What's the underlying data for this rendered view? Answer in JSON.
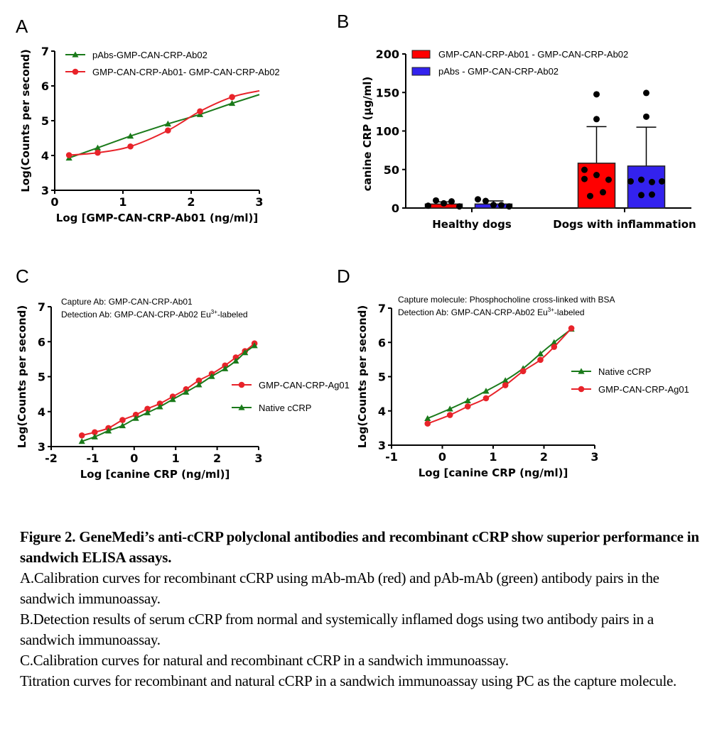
{
  "panels": {
    "A": "A",
    "B": "B",
    "C": "C",
    "D": "D"
  },
  "chart_data": [
    {
      "id": "A",
      "type": "line",
      "title": "",
      "xlabel": "Log [GMP-CAN-CRP-Ab01 (ng/ml)]",
      "ylabel": "Log(Counts per second)",
      "xlim": [
        0,
        3
      ],
      "ylim": [
        3,
        7
      ],
      "xticks": [
        "0",
        "1",
        "2",
        "3"
      ],
      "yticks": [
        "3",
        "4",
        "5",
        "6",
        "7"
      ],
      "grid": false,
      "legend_position": "top-left",
      "series": [
        {
          "name": "pAbs-GMP-CAN-CRP-Ab02",
          "color": "#1a7a1a",
          "marker": "triangle",
          "x": [
            0.21,
            0.63,
            1.11,
            1.66,
            2.13,
            2.6
          ],
          "y": [
            3.93,
            4.22,
            4.56,
            4.91,
            5.18,
            5.5
          ],
          "fit_end": [
            3.0,
            5.75
          ]
        },
        {
          "name": "GMP-CAN-CRP-Ab01- GMP-CAN-CRP-Ab02",
          "color": "#e8232a",
          "marker": "circle",
          "x": [
            0.21,
            0.63,
            1.11,
            1.66,
            2.13,
            2.6
          ],
          "y": [
            4.01,
            4.08,
            4.26,
            4.72,
            5.27,
            5.68
          ],
          "fit_end": [
            3.0,
            5.86
          ]
        }
      ]
    },
    {
      "id": "B",
      "type": "bar",
      "title": "",
      "xlabel": "",
      "ylabel": "canine CRP (μg/ml)",
      "ylim": [
        0,
        200
      ],
      "yticks": [
        "0",
        "50",
        "100",
        "150",
        "200"
      ],
      "categories": [
        "Healthy dogs",
        "Dogs with inflammation"
      ],
      "grid": false,
      "legend_position": "top-left",
      "series": [
        {
          "name": "GMP-CAN-CRP-Ab01 - GMP-CAN-CRP-Ab02",
          "color": "#ff0000",
          "values": [
            5.2,
            58.2
          ],
          "error": [
            2.7,
            47.5
          ],
          "points": [
            [
              3.0,
              9.8,
              6.1,
              8.6,
              2.1
            ],
            [
              147.6,
              115.4,
              49.6,
              42.8,
              37.7,
              36.8,
              15.6,
              20.5
            ]
          ]
        },
        {
          "name": "pAbs - GMP-CAN-CRP-Ab02",
          "color": "#3322ee",
          "values": [
            5.2,
            54.5
          ],
          "error": [
            4.0,
            50.5
          ],
          "points": [
            [
              11.3,
              9.2,
              4.0,
              3.7,
              2.1
            ],
            [
              149.4,
              118.6,
              34.6,
              36.8,
              33.7,
              34.6,
              16.8,
              17.5
            ]
          ]
        }
      ]
    },
    {
      "id": "C",
      "type": "line",
      "title": "",
      "annotation": [
        "Capture Ab: GMP-CAN-CRP-Ab01",
        "Detection Ab: GMP-CAN-CRP-Ab02 Eu",
        "3+",
        "-labeled"
      ],
      "xlabel": "Log [canine CRP (ng/ml)]",
      "ylabel": "Log(Counts per second)",
      "xlim": [
        -2,
        3
      ],
      "ylim": [
        3,
        7
      ],
      "xticks": [
        "-2",
        "-1",
        "0",
        "1",
        "2",
        "3"
      ],
      "yticks": [
        "3",
        "4",
        "5",
        "6",
        "7"
      ],
      "grid": false,
      "legend_position": "right",
      "series": [
        {
          "name": "GMP-CAN-CRP-Ag01",
          "color": "#e8232a",
          "marker": "circle",
          "x": [
            -1.26,
            -0.95,
            -0.62,
            -0.28,
            0.04,
            0.32,
            0.62,
            0.93,
            1.25,
            1.56,
            1.87,
            2.19,
            2.45,
            2.67,
            2.9
          ],
          "y": [
            3.32,
            3.41,
            3.53,
            3.76,
            3.91,
            4.08,
            4.23,
            4.43,
            4.64,
            4.89,
            5.08,
            5.32,
            5.55,
            5.73,
            5.95
          ]
        },
        {
          "name": "Native cCRP",
          "color": "#1a7a1a",
          "marker": "triangle",
          "x": [
            -1.26,
            -0.95,
            -0.62,
            -0.28,
            0.04,
            0.32,
            0.62,
            0.93,
            1.25,
            1.56,
            1.87,
            2.19,
            2.45,
            2.67,
            2.9
          ],
          "y": [
            3.15,
            3.28,
            3.45,
            3.6,
            3.81,
            3.97,
            4.14,
            4.35,
            4.56,
            4.77,
            5.01,
            5.23,
            5.45,
            5.69,
            5.89
          ]
        }
      ]
    },
    {
      "id": "D",
      "type": "line",
      "title": "",
      "annotation": [
        "Capture molecule: Phosphocholine cross-linked with BSA",
        "Detection Ab: GMP-CAN-CRP-Ab02 Eu",
        "3+",
        "-labeled"
      ],
      "xlabel": "Log [canine CRP (ng/ml)]",
      "ylabel": "Log(Counts per second)",
      "xlim": [
        -1,
        3
      ],
      "ylim": [
        3,
        7
      ],
      "xticks": [
        "-1",
        "0",
        "1",
        "2",
        "3"
      ],
      "yticks": [
        "3",
        "4",
        "5",
        "6",
        "7"
      ],
      "grid": false,
      "legend_position": "right",
      "series": [
        {
          "name": "Native cCRP",
          "color": "#1a7a1a",
          "marker": "triangle",
          "x": [
            -0.29,
            0.15,
            0.5,
            0.86,
            1.24,
            1.59,
            1.93,
            2.2,
            2.54
          ],
          "y": [
            3.78,
            4.06,
            4.3,
            4.58,
            4.89,
            5.24,
            5.67,
            6.0,
            6.39
          ]
        },
        {
          "name": "GMP-CAN-CRP-Ag01",
          "color": "#e8232a",
          "marker": "circle",
          "x": [
            -0.29,
            0.15,
            0.5,
            0.86,
            1.24,
            1.59,
            1.93,
            2.2,
            2.54
          ],
          "y": [
            3.63,
            3.88,
            4.13,
            4.37,
            4.75,
            5.16,
            5.49,
            5.87,
            6.41
          ]
        }
      ]
    }
  ],
  "caption": {
    "title": "Figure 2. GeneMedi’s anti-cCRP polyclonal antibodies and recombinant cCRP show superior performance in sandwich ELISA assays.",
    "lines": [
      "A.Calibration curves for recombinant cCRP using mAb-mAb (red) and pAb-mAb (green) antibody pairs in the sandwich immunoassay.",
      "B.Detection results of serum cCRP from normal and systemically inflamed dogs using two antibody pairs in a sandwich immunoassay.",
      "C.Calibration curves for natural and recombinant cCRP in a sandwich immunoassay.",
      "Titration curves for recombinant and natural cCRP in a sandwich immunoassay using PC as the capture molecule."
    ]
  }
}
